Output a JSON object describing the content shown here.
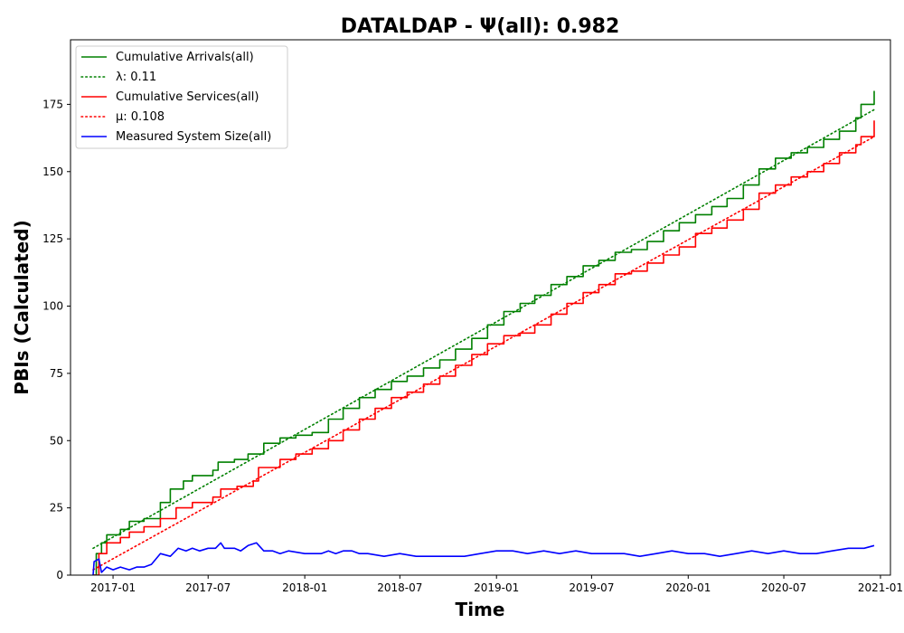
{
  "chart_data": {
    "type": "line",
    "title": "DATALDAP -  Ψ(all): 0.982",
    "xlabel": "Time",
    "ylabel": "PBIs (Calculated)",
    "xlim": [
      "2016-10-12",
      "2021-01-20"
    ],
    "ylim": [
      0,
      199
    ],
    "x_ticks": [
      "2017-01",
      "2017-07",
      "2018-01",
      "2018-07",
      "2019-01",
      "2019-07",
      "2020-01",
      "2020-07",
      "2021-01"
    ],
    "y_ticks": [
      0,
      25,
      50,
      75,
      100,
      125,
      150,
      175
    ],
    "legend_position": "upper-left",
    "grid": false,
    "series": [
      {
        "name": "Cumulative Arrivals(all)",
        "color": "#008000",
        "style": "solid",
        "step": true,
        "points": [
          [
            "2016-11-24",
            0
          ],
          [
            "2016-11-30",
            8
          ],
          [
            "2016-12-10",
            12
          ],
          [
            "2016-12-20",
            15
          ],
          [
            "2017-01-15",
            17
          ],
          [
            "2017-02-01",
            20
          ],
          [
            "2017-03-01",
            21
          ],
          [
            "2017-04-01",
            27
          ],
          [
            "2017-04-20",
            32
          ],
          [
            "2017-05-15",
            35
          ],
          [
            "2017-06-01",
            37
          ],
          [
            "2017-07-10",
            39
          ],
          [
            "2017-07-20",
            42
          ],
          [
            "2017-08-20",
            43
          ],
          [
            "2017-09-15",
            45
          ],
          [
            "2017-10-15",
            49
          ],
          [
            "2017-11-15",
            51
          ],
          [
            "2017-12-15",
            52
          ],
          [
            "2018-01-15",
            53
          ],
          [
            "2018-02-15",
            58
          ],
          [
            "2018-03-15",
            62
          ],
          [
            "2018-04-15",
            66
          ],
          [
            "2018-05-15",
            69
          ],
          [
            "2018-06-15",
            72
          ],
          [
            "2018-07-15",
            74
          ],
          [
            "2018-08-15",
            77
          ],
          [
            "2018-09-15",
            80
          ],
          [
            "2018-10-15",
            84
          ],
          [
            "2018-11-15",
            88
          ],
          [
            "2018-12-15",
            93
          ],
          [
            "2019-01-15",
            98
          ],
          [
            "2019-02-15",
            101
          ],
          [
            "2019-03-15",
            104
          ],
          [
            "2019-04-15",
            108
          ],
          [
            "2019-05-15",
            111
          ],
          [
            "2019-06-15",
            115
          ],
          [
            "2019-07-15",
            117
          ],
          [
            "2019-08-15",
            120
          ],
          [
            "2019-09-15",
            121
          ],
          [
            "2019-10-15",
            124
          ],
          [
            "2019-11-15",
            128
          ],
          [
            "2019-12-15",
            131
          ],
          [
            "2020-01-15",
            134
          ],
          [
            "2020-02-15",
            137
          ],
          [
            "2020-03-15",
            140
          ],
          [
            "2020-04-15",
            145
          ],
          [
            "2020-05-15",
            151
          ],
          [
            "2020-06-15",
            155
          ],
          [
            "2020-07-15",
            157
          ],
          [
            "2020-08-15",
            159
          ],
          [
            "2020-09-15",
            162
          ],
          [
            "2020-10-15",
            165
          ],
          [
            "2020-11-15",
            170
          ],
          [
            "2020-11-25",
            175
          ],
          [
            "2020-12-20",
            180
          ]
        ]
      },
      {
        "name": "λ: 0.11",
        "color": "#008000",
        "style": "dotted",
        "points": [
          [
            "2016-11-24",
            10
          ],
          [
            "2020-12-20",
            173
          ]
        ]
      },
      {
        "name": "Cumulative Services(all)",
        "color": "#ff0000",
        "style": "solid",
        "step": true,
        "points": [
          [
            "2016-11-24",
            0
          ],
          [
            "2016-12-05",
            8
          ],
          [
            "2016-12-20",
            12
          ],
          [
            "2017-01-15",
            14
          ],
          [
            "2017-02-01",
            16
          ],
          [
            "2017-03-01",
            18
          ],
          [
            "2017-04-01",
            21
          ],
          [
            "2017-05-01",
            25
          ],
          [
            "2017-06-01",
            27
          ],
          [
            "2017-07-10",
            29
          ],
          [
            "2017-07-25",
            32
          ],
          [
            "2017-08-25",
            33
          ],
          [
            "2017-09-25",
            35
          ],
          [
            "2017-10-05",
            40
          ],
          [
            "2017-11-15",
            43
          ],
          [
            "2017-12-15",
            45
          ],
          [
            "2018-01-15",
            47
          ],
          [
            "2018-02-15",
            50
          ],
          [
            "2018-03-15",
            54
          ],
          [
            "2018-04-15",
            58
          ],
          [
            "2018-05-15",
            62
          ],
          [
            "2018-06-15",
            66
          ],
          [
            "2018-07-15",
            68
          ],
          [
            "2018-08-15",
            71
          ],
          [
            "2018-09-15",
            74
          ],
          [
            "2018-10-15",
            78
          ],
          [
            "2018-11-15",
            82
          ],
          [
            "2018-12-15",
            86
          ],
          [
            "2019-01-15",
            89
          ],
          [
            "2019-02-15",
            90
          ],
          [
            "2019-03-15",
            93
          ],
          [
            "2019-04-15",
            97
          ],
          [
            "2019-05-15",
            101
          ],
          [
            "2019-06-15",
            105
          ],
          [
            "2019-07-15",
            108
          ],
          [
            "2019-08-15",
            112
          ],
          [
            "2019-09-15",
            113
          ],
          [
            "2019-10-15",
            116
          ],
          [
            "2019-11-15",
            119
          ],
          [
            "2019-12-15",
            122
          ],
          [
            "2020-01-15",
            127
          ],
          [
            "2020-02-15",
            129
          ],
          [
            "2020-03-15",
            132
          ],
          [
            "2020-04-15",
            136
          ],
          [
            "2020-05-15",
            142
          ],
          [
            "2020-06-15",
            145
          ],
          [
            "2020-07-15",
            148
          ],
          [
            "2020-08-15",
            150
          ],
          [
            "2020-09-15",
            153
          ],
          [
            "2020-10-15",
            157
          ],
          [
            "2020-11-15",
            160
          ],
          [
            "2020-11-25",
            163
          ],
          [
            "2020-12-20",
            169
          ]
        ]
      },
      {
        "name": "μ: 0.108",
        "color": "#ff0000",
        "style": "dotted",
        "points": [
          [
            "2016-11-24",
            2
          ],
          [
            "2020-12-20",
            163
          ]
        ]
      },
      {
        "name": "Measured System Size(all)",
        "color": "#0000ff",
        "style": "solid",
        "points": [
          [
            "2016-11-24",
            0
          ],
          [
            "2016-11-26",
            5
          ],
          [
            "2016-12-05",
            6
          ],
          [
            "2016-12-10",
            1
          ],
          [
            "2016-12-20",
            3
          ],
          [
            "2017-01-01",
            2
          ],
          [
            "2017-01-15",
            3
          ],
          [
            "2017-02-01",
            2
          ],
          [
            "2017-02-15",
            3
          ],
          [
            "2017-03-01",
            3
          ],
          [
            "2017-03-15",
            4
          ],
          [
            "2017-04-01",
            8
          ],
          [
            "2017-04-20",
            7
          ],
          [
            "2017-05-05",
            10
          ],
          [
            "2017-05-20",
            9
          ],
          [
            "2017-06-01",
            10
          ],
          [
            "2017-06-15",
            9
          ],
          [
            "2017-07-01",
            10
          ],
          [
            "2017-07-15",
            10
          ],
          [
            "2017-07-25",
            12
          ],
          [
            "2017-08-01",
            10
          ],
          [
            "2017-08-20",
            10
          ],
          [
            "2017-09-01",
            9
          ],
          [
            "2017-09-15",
            11
          ],
          [
            "2017-10-01",
            12
          ],
          [
            "2017-10-15",
            9
          ],
          [
            "2017-11-01",
            9
          ],
          [
            "2017-11-15",
            8
          ],
          [
            "2017-12-01",
            9
          ],
          [
            "2018-01-01",
            8
          ],
          [
            "2018-02-01",
            8
          ],
          [
            "2018-02-15",
            9
          ],
          [
            "2018-03-01",
            8
          ],
          [
            "2018-03-15",
            9
          ],
          [
            "2018-04-01",
            9
          ],
          [
            "2018-04-15",
            8
          ],
          [
            "2018-05-01",
            8
          ],
          [
            "2018-06-01",
            7
          ],
          [
            "2018-07-01",
            8
          ],
          [
            "2018-08-01",
            7
          ],
          [
            "2018-09-01",
            7
          ],
          [
            "2018-10-01",
            7
          ],
          [
            "2018-11-01",
            7
          ],
          [
            "2018-12-01",
            8
          ],
          [
            "2019-01-01",
            9
          ],
          [
            "2019-02-01",
            9
          ],
          [
            "2019-03-01",
            8
          ],
          [
            "2019-04-01",
            9
          ],
          [
            "2019-05-01",
            8
          ],
          [
            "2019-06-01",
            9
          ],
          [
            "2019-07-01",
            8
          ],
          [
            "2019-08-01",
            8
          ],
          [
            "2019-09-01",
            8
          ],
          [
            "2019-10-01",
            7
          ],
          [
            "2019-11-01",
            8
          ],
          [
            "2019-12-01",
            9
          ],
          [
            "2020-01-01",
            8
          ],
          [
            "2020-02-01",
            8
          ],
          [
            "2020-03-01",
            7
          ],
          [
            "2020-04-01",
            8
          ],
          [
            "2020-05-01",
            9
          ],
          [
            "2020-06-01",
            8
          ],
          [
            "2020-07-01",
            9
          ],
          [
            "2020-08-01",
            8
          ],
          [
            "2020-09-01",
            8
          ],
          [
            "2020-10-01",
            9
          ],
          [
            "2020-11-01",
            10
          ],
          [
            "2020-11-20",
            10
          ],
          [
            "2020-12-01",
            10
          ],
          [
            "2020-12-20",
            11
          ]
        ]
      }
    ]
  }
}
